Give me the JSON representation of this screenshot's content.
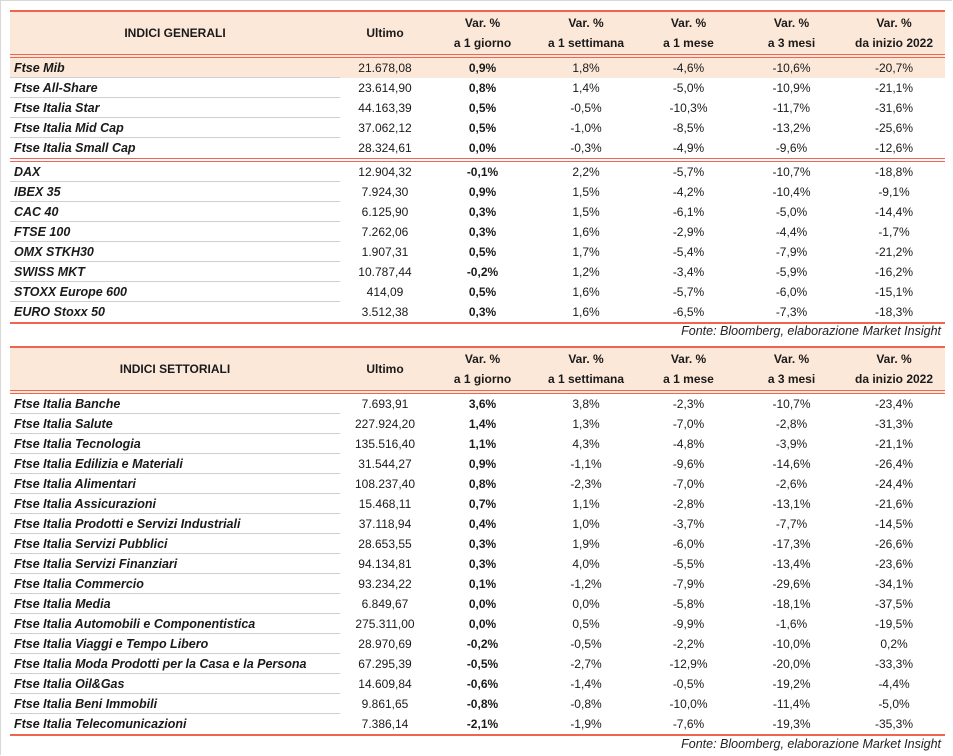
{
  "colors": {
    "accent": "#f0654f",
    "header_bg": "#fce8d8"
  },
  "general": {
    "headers": [
      [
        "INDICI GENERALI"
      ],
      [
        "Ultimo"
      ],
      [
        "Var. %",
        "a 1 giorno"
      ],
      [
        "Var. %",
        "a 1 settimana"
      ],
      [
        "Var. %",
        "a 1 mese"
      ],
      [
        "Var. %",
        "a 3 mesi"
      ],
      [
        "Var. %",
        "da inizio 2022"
      ]
    ],
    "groups": [
      [
        [
          "Ftse Mib",
          "21.678,08",
          "0,9%",
          "1,8%",
          "-4,6%",
          "-10,6%",
          "-20,7%"
        ],
        [
          "Ftse All-Share",
          "23.614,90",
          "0,8%",
          "1,4%",
          "-5,0%",
          "-10,9%",
          "-21,1%"
        ],
        [
          "Ftse Italia Star",
          "44.163,39",
          "0,5%",
          "-0,5%",
          "-10,3%",
          "-11,7%",
          "-31,6%"
        ],
        [
          "Ftse Italia Mid Cap",
          "37.062,12",
          "0,5%",
          "-1,0%",
          "-8,5%",
          "-13,2%",
          "-25,6%"
        ],
        [
          "Ftse Italia Small Cap",
          "28.324,61",
          "0,0%",
          "-0,3%",
          "-4,9%",
          "-9,6%",
          "-12,6%"
        ]
      ],
      [
        [
          "DAX",
          "12.904,32",
          "-0,1%",
          "2,2%",
          "-5,7%",
          "-10,7%",
          "-18,8%"
        ],
        [
          "IBEX 35",
          "7.924,30",
          "0,9%",
          "1,5%",
          "-4,2%",
          "-10,4%",
          "-9,1%"
        ],
        [
          "CAC 40",
          "6.125,90",
          "0,3%",
          "1,5%",
          "-6,1%",
          "-5,0%",
          "-14,4%"
        ],
        [
          "FTSE 100",
          "7.262,06",
          "0,3%",
          "1,6%",
          "-2,9%",
          "-4,4%",
          "-1,7%"
        ],
        [
          "OMX STKH30",
          "1.907,31",
          "0,5%",
          "1,7%",
          "-5,4%",
          "-7,9%",
          "-21,2%"
        ],
        [
          "SWISS MKT",
          "10.787,44",
          "-0,2%",
          "1,2%",
          "-3,4%",
          "-5,9%",
          "-16,2%"
        ],
        [
          "STOXX Europe 600",
          "414,09",
          "0,5%",
          "1,6%",
          "-5,7%",
          "-6,0%",
          "-15,1%"
        ],
        [
          "EURO Stoxx 50",
          "3.512,38",
          "0,3%",
          "1,6%",
          "-6,5%",
          "-7,3%",
          "-18,3%"
        ]
      ]
    ],
    "source": "Fonte: Bloomberg, elaborazione Market Insight"
  },
  "sector": {
    "headers": [
      [
        "INDICI SETTORIALI"
      ],
      [
        "Ultimo"
      ],
      [
        "Var. %",
        "a 1 giorno"
      ],
      [
        "Var. %",
        "a 1 settimana"
      ],
      [
        "Var. %",
        "a 1 mese"
      ],
      [
        "Var. %",
        "a 3 mesi"
      ],
      [
        "Var. %",
        "da inizio 2022"
      ]
    ],
    "groups": [
      [
        [
          "Ftse Italia Banche",
          "7.693,91",
          "3,6%",
          "3,8%",
          "-2,3%",
          "-10,7%",
          "-23,4%"
        ],
        [
          "Ftse Italia Salute",
          "227.924,20",
          "1,4%",
          "1,3%",
          "-7,0%",
          "-2,8%",
          "-31,3%"
        ],
        [
          "Ftse Italia Tecnologia",
          "135.516,40",
          "1,1%",
          "4,3%",
          "-4,8%",
          "-3,9%",
          "-21,1%"
        ],
        [
          "Ftse Italia Edilizia e Materiali",
          "31.544,27",
          "0,9%",
          "-1,1%",
          "-9,6%",
          "-14,6%",
          "-26,4%"
        ],
        [
          "Ftse Italia Alimentari",
          "108.237,40",
          "0,8%",
          "-2,3%",
          "-7,0%",
          "-2,6%",
          "-24,4%"
        ],
        [
          "Ftse Italia Assicurazioni",
          "15.468,11",
          "0,7%",
          "1,1%",
          "-2,8%",
          "-13,1%",
          "-21,6%"
        ],
        [
          "Ftse Italia Prodotti e Servizi Industriali",
          "37.118,94",
          "0,4%",
          "1,0%",
          "-3,7%",
          "-7,7%",
          "-14,5%"
        ],
        [
          "Ftse Italia Servizi Pubblici",
          "28.653,55",
          "0,3%",
          "1,9%",
          "-6,0%",
          "-17,3%",
          "-26,6%"
        ],
        [
          "Ftse Italia Servizi Finanziari",
          "94.134,81",
          "0,3%",
          "4,0%",
          "-5,5%",
          "-13,4%",
          "-23,6%"
        ],
        [
          "Ftse Italia Commercio",
          "93.234,22",
          "0,1%",
          "-1,2%",
          "-7,9%",
          "-29,6%",
          "-34,1%"
        ],
        [
          "Ftse Italia Media",
          "6.849,67",
          "0,0%",
          "0,0%",
          "-5,8%",
          "-18,1%",
          "-37,5%"
        ],
        [
          "Ftse Italia Automobili e Componentistica",
          "275.311,00",
          "0,0%",
          "0,5%",
          "-9,9%",
          "-1,6%",
          "-19,5%"
        ],
        [
          "Ftse Italia Viaggi e Tempo Libero",
          "28.970,69",
          "-0,2%",
          "-0,5%",
          "-2,2%",
          "-10,0%",
          "0,2%"
        ],
        [
          "Ftse Italia Moda Prodotti per la Casa e la Persona",
          "67.295,39",
          "-0,5%",
          "-2,7%",
          "-12,9%",
          "-20,0%",
          "-33,3%"
        ],
        [
          "Ftse Italia Oil&Gas",
          "14.609,84",
          "-0,6%",
          "-1,4%",
          "-0,5%",
          "-19,2%",
          "-4,4%"
        ],
        [
          "Ftse Italia Beni Immobili",
          "9.861,65",
          "-0,8%",
          "-0,8%",
          "-10,0%",
          "-11,4%",
          "-5,0%"
        ],
        [
          "Ftse Italia Telecomunicazioni",
          "7.386,14",
          "-2,1%",
          "-1,9%",
          "-7,6%",
          "-19,3%",
          "-35,3%"
        ]
      ]
    ],
    "source": "Fonte: Bloomberg, elaborazione Market Insight"
  }
}
